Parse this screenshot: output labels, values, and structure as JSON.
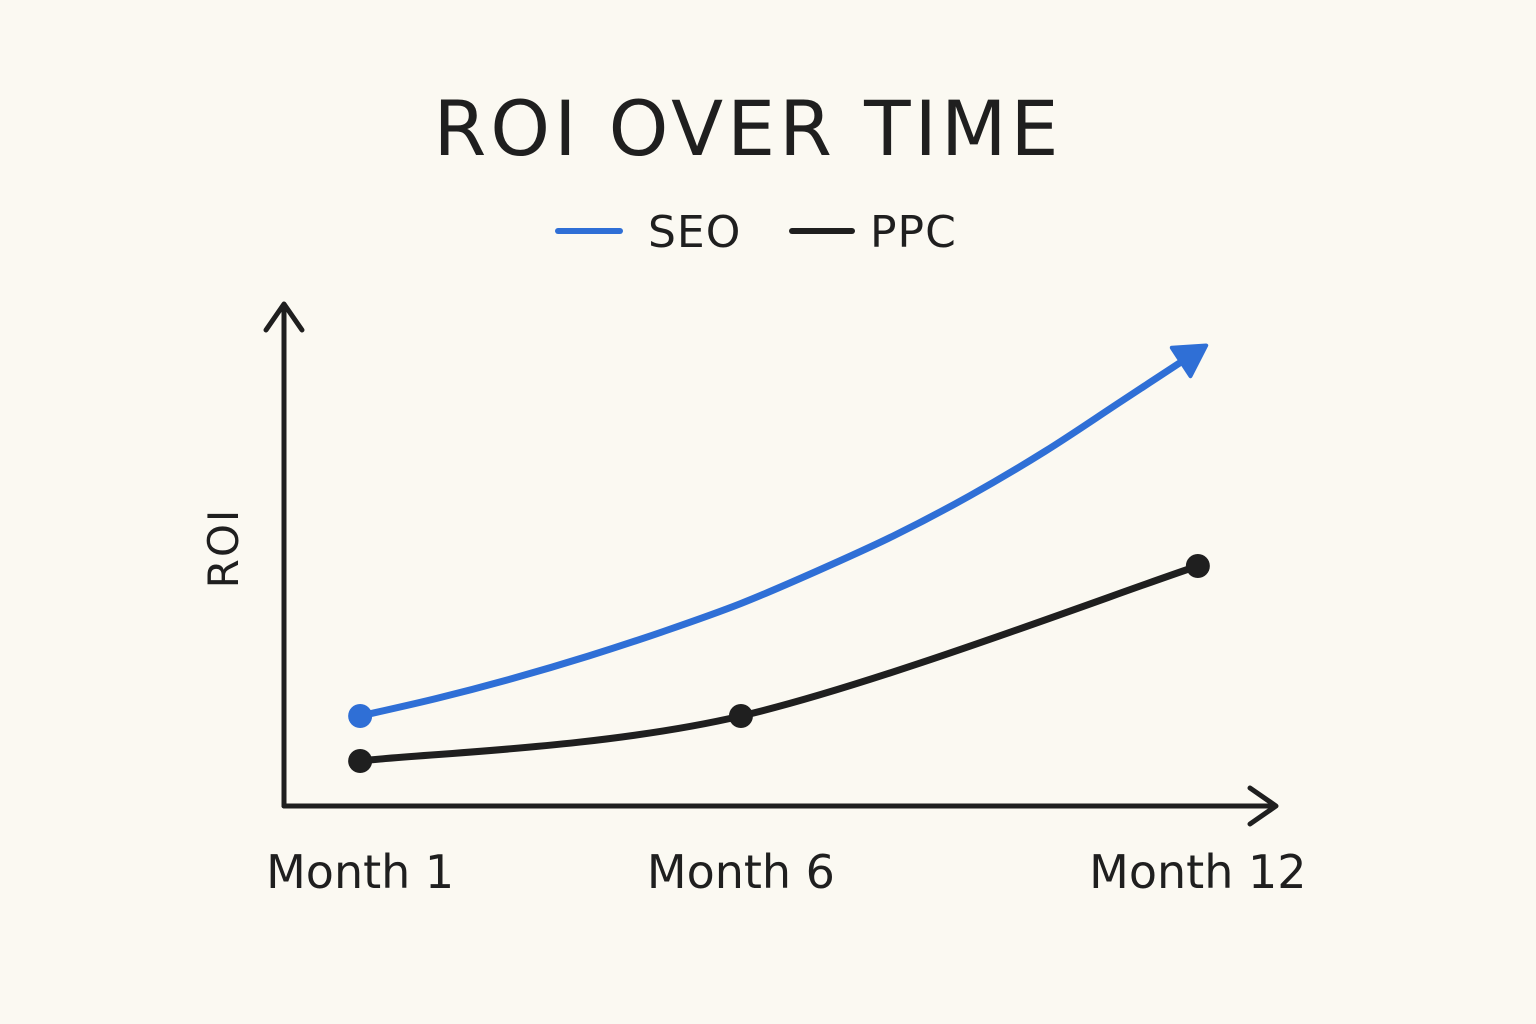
{
  "chart_data": {
    "type": "line",
    "title": "ROI OVER TIME",
    "xlabel": "",
    "ylabel": "ROI",
    "categories": [
      "Month 1",
      "Month 6",
      "Month 12"
    ],
    "x": [
      1,
      6,
      12
    ],
    "xlim": [
      0,
      13
    ],
    "ylim": [
      0,
      10
    ],
    "grid": false,
    "legend_position": "top-center",
    "series": [
      {
        "name": "SEO",
        "color": "#2f6fd6",
        "x": [
          1,
          2,
          3,
          4,
          5,
          6,
          7,
          8,
          9,
          10,
          11,
          12
        ],
        "values": [
          1.8,
          2.15,
          2.55,
          3.0,
          3.5,
          4.05,
          4.7,
          5.4,
          6.2,
          7.1,
          8.1,
          9.1
        ],
        "markers_at": [
          1
        ],
        "end_arrow": true
      },
      {
        "name": "PPC",
        "color": "#1f1f1f",
        "x": [
          1,
          6,
          12
        ],
        "values": [
          0.9,
          1.8,
          4.8
        ],
        "markers_at": [
          1,
          6,
          12
        ],
        "end_arrow": false
      }
    ]
  }
}
